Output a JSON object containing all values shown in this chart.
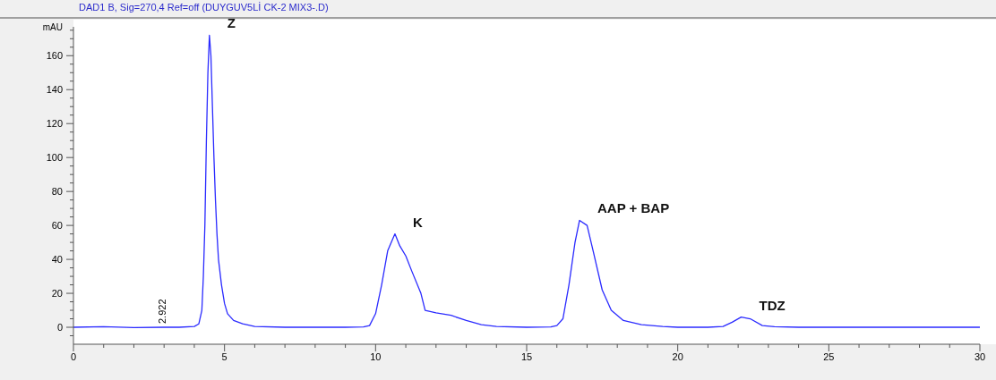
{
  "chart_data": {
    "type": "line",
    "title": "DAD1 B, Sig=270,4 Ref=off (DUYGUV5Lİ CK-2 MIX3-.D)",
    "ylabel": "mAU",
    "xlim": [
      0,
      30
    ],
    "ylim": [
      -10,
      177
    ],
    "xticks": [
      0,
      {
        "value": 1,
        "label": null
      },
      {
        "value": 2,
        "label": null
      },
      {
        "value": 3,
        "label": null
      },
      {
        "value": 4,
        "label": null
      },
      5,
      {
        "value": 6,
        "label": null
      },
      {
        "value": 7,
        "label": null
      },
      {
        "value": 8,
        "label": null
      },
      {
        "value": 9,
        "label": null
      },
      10,
      {
        "value": 11,
        "label": null
      },
      {
        "value": 12,
        "label": null
      },
      {
        "value": 13,
        "label": null
      },
      {
        "value": 14,
        "label": null
      },
      15,
      {
        "value": 16,
        "label": null
      },
      {
        "value": 17,
        "label": null
      },
      {
        "value": 18,
        "label": null
      },
      {
        "value": 19,
        "label": null
      },
      20,
      {
        "value": 21,
        "label": null
      },
      {
        "value": 22,
        "label": null
      },
      {
        "value": 23,
        "label": null
      },
      {
        "value": 24,
        "label": null
      },
      25,
      {
        "value": 26,
        "label": null
      },
      {
        "value": 27,
        "label": null
      },
      {
        "value": 28,
        "label": null
      },
      {
        "value": 29,
        "label": null
      },
      30
    ],
    "yticks": [
      {
        "value": -5,
        "label": null
      },
      0,
      {
        "value": 5,
        "label": null
      },
      {
        "value": 10,
        "label": null
      },
      {
        "value": 15,
        "label": null
      },
      20,
      {
        "value": 25,
        "label": null
      },
      {
        "value": 30,
        "label": null
      },
      {
        "value": 35,
        "label": null
      },
      40,
      {
        "value": 45,
        "label": null
      },
      {
        "value": 50,
        "label": null
      },
      {
        "value": 55,
        "label": null
      },
      60,
      {
        "value": 65,
        "label": null
      },
      {
        "value": 70,
        "label": null
      },
      {
        "value": 75,
        "label": null
      },
      80,
      {
        "value": 85,
        "label": null
      },
      {
        "value": 90,
        "label": null
      },
      {
        "value": 95,
        "label": null
      },
      100,
      {
        "value": 105,
        "label": null
      },
      {
        "value": 110,
        "label": null
      },
      {
        "value": 115,
        "label": null
      },
      120,
      {
        "value": 125,
        "label": null
      },
      {
        "value": 130,
        "label": null
      },
      {
        "value": 135,
        "label": null
      },
      140,
      {
        "value": 145,
        "label": null
      },
      {
        "value": 150,
        "label": null
      },
      {
        "value": 155,
        "label": null
      },
      160,
      {
        "value": 165,
        "label": null
      },
      {
        "value": 170,
        "label": null
      },
      {
        "value": 175,
        "label": null
      }
    ],
    "grid": false,
    "marker": "none",
    "line_style": "solid",
    "series": [
      {
        "color": "#2b2bff",
        "x": [
          0,
          1,
          2,
          3,
          3.5,
          4,
          4.15,
          4.25,
          4.3,
          4.35,
          4.4,
          4.45,
          4.5,
          4.55,
          4.6,
          4.65,
          4.7,
          4.75,
          4.8,
          4.9,
          5,
          5.1,
          5.3,
          5.6,
          6,
          7,
          9,
          9.6,
          9.8,
          10,
          10.2,
          10.4,
          10.64,
          10.8,
          11,
          11.2,
          11.5,
          11.64,
          12,
          12.5,
          13,
          13.5,
          14,
          15,
          15.8,
          16,
          16.2,
          16.4,
          16.6,
          16.75,
          17,
          17.2,
          17.5,
          17.8,
          18.2,
          18.8,
          19.5,
          20,
          21,
          21.5,
          21.8,
          22.1,
          22.4,
          22.8,
          23.2,
          24,
          30
        ],
        "values": [
          0,
          0.3,
          -0.2,
          0,
          0,
          0.5,
          2,
          10,
          30,
          60,
          110,
          150,
          172,
          160,
          130,
          100,
          75,
          55,
          40,
          25,
          14,
          8,
          4,
          2,
          0.5,
          0,
          0,
          0.2,
          1,
          8,
          25,
          45,
          55,
          48,
          42,
          33,
          20,
          10,
          8.5,
          7,
          4,
          1.5,
          0.5,
          0,
          0.2,
          1,
          5,
          25,
          50,
          63,
          60,
          45,
          22,
          10,
          4,
          1.5,
          0.5,
          0,
          0,
          0.5,
          3,
          6,
          5,
          1,
          0.3,
          0,
          0
        ]
      }
    ],
    "annotations": [
      {
        "text": "Z",
        "x": 4.5,
        "y": 172
      },
      {
        "text": "K",
        "x": 10.64,
        "y": 55
      },
      {
        "text": "AAP + BAP",
        "x": 16.75,
        "y": 63
      },
      {
        "text": "TDZ",
        "x": 22.1,
        "y": 6
      },
      {
        "text": "2.922",
        "x": 2.922,
        "y": 0
      }
    ]
  }
}
